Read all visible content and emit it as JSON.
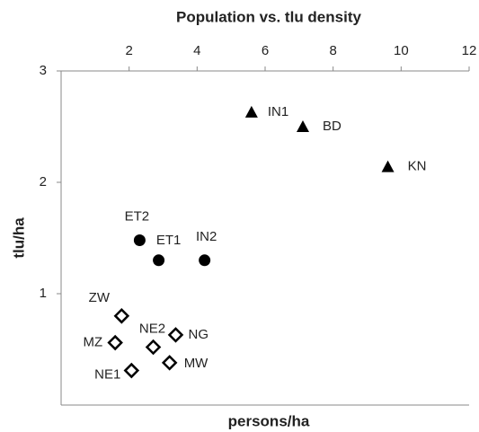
{
  "chart_data": {
    "type": "scatter",
    "title": "Population vs. tlu density",
    "x_label": "persons/ha",
    "y_label": "tlu/ha",
    "xlim": [
      0,
      12
    ],
    "xticks": [
      2,
      4,
      6,
      8,
      10,
      12
    ],
    "ylim": [
      0,
      3
    ],
    "yticks": [
      1,
      2,
      3
    ],
    "color": "#000000",
    "points": [
      {
        "label": "IN1",
        "x": 5.6,
        "y": 2.63,
        "marker": "triangle"
      },
      {
        "label": "BD",
        "x": 7.11,
        "y": 2.5,
        "marker": "triangle"
      },
      {
        "label": "KN",
        "x": 9.61,
        "y": 2.14,
        "marker": "triangle"
      },
      {
        "label": "ET2",
        "x": 2.31,
        "y": 1.48,
        "marker": "circle"
      },
      {
        "label": "ET1",
        "x": 2.87,
        "y": 1.3,
        "marker": "circle"
      },
      {
        "label": "IN2",
        "x": 4.22,
        "y": 1.3,
        "marker": "circle"
      },
      {
        "label": "ZW",
        "x": 1.78,
        "y": 0.8,
        "marker": "diamond"
      },
      {
        "label": "MZ",
        "x": 1.59,
        "y": 0.56,
        "marker": "diamond"
      },
      {
        "label": "NE2",
        "x": 2.71,
        "y": 0.52,
        "marker": "diamond"
      },
      {
        "label": "NG",
        "x": 3.37,
        "y": 0.63,
        "marker": "diamond"
      },
      {
        "label": "MW",
        "x": 3.19,
        "y": 0.38,
        "marker": "diamond"
      },
      {
        "label": "NE1",
        "x": 2.07,
        "y": 0.31,
        "marker": "diamond"
      }
    ]
  }
}
